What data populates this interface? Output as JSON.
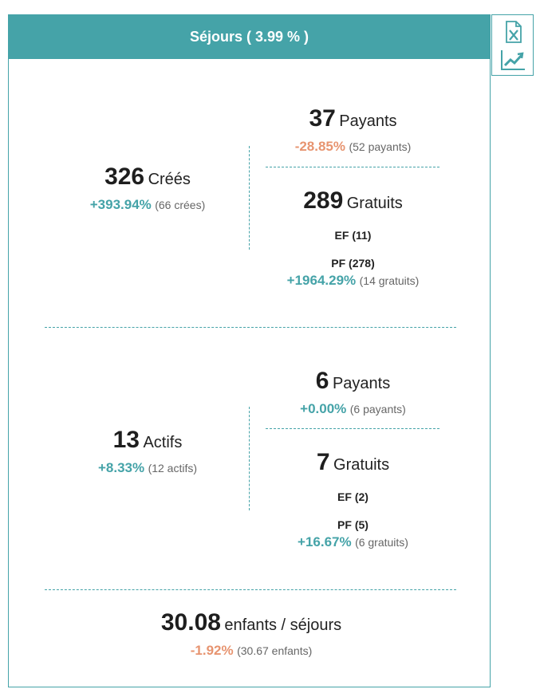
{
  "header": {
    "title": "Séjours ( 3.99 % )"
  },
  "icons": {
    "excel": "excel-file-icon",
    "trend": "trend-chart-icon"
  },
  "colors": {
    "accent": "#45a3a8",
    "negative": "#e79470"
  },
  "created": {
    "count": "326",
    "label": "Créés",
    "delta": "+393.94%",
    "note": "(66 crées)",
    "paying": {
      "count": "37",
      "label": "Payants",
      "delta": "-28.85%",
      "note": "(52 payants)"
    },
    "free": {
      "count": "289",
      "label": "Gratuits",
      "ef": "EF (11)",
      "pf": "PF (278)",
      "delta": "+1964.29%",
      "note": "(14 gratuits)"
    }
  },
  "active": {
    "count": "13",
    "label": "Actifs",
    "delta": "+8.33%",
    "note": "(12 actifs)",
    "paying": {
      "count": "6",
      "label": "Payants",
      "delta": "+0.00%",
      "note": "(6 payants)"
    },
    "free": {
      "count": "7",
      "label": "Gratuits",
      "ef": "EF (2)",
      "pf": "PF (5)",
      "delta": "+16.67%",
      "note": "(6 gratuits)"
    }
  },
  "children": {
    "count": "30.08",
    "label": "enfants / séjours",
    "delta": "-1.92%",
    "note": "(30.67 enfants)"
  }
}
